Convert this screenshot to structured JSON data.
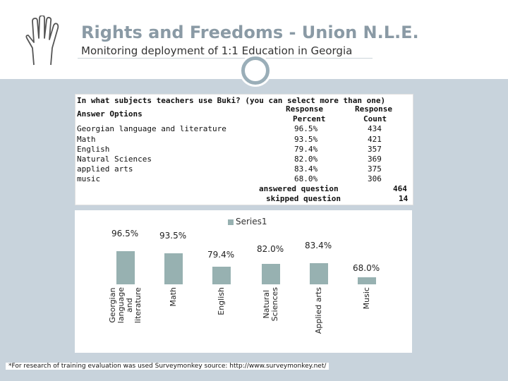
{
  "slide": {
    "title": "Rights and Freedoms - Union N.L.E.",
    "subtitle": "Monitoring deployment of 1:1 Education in Georgia",
    "logo_icon": "hand-icon",
    "accent_circle_icon": "circle-icon"
  },
  "survey_table": {
    "question": "In what subjects teachers use Buki? (you can select more than one)",
    "col_answer": "Answer Options",
    "col_percent_1": "Response",
    "col_percent_2": "Percent",
    "col_count_1": "Response",
    "col_count_2": "Count",
    "rows": [
      {
        "option": "Georgian language and literature",
        "percent": "96.5%",
        "count": "434"
      },
      {
        "option": "Math",
        "percent": "93.5%",
        "count": "421"
      },
      {
        "option": "English",
        "percent": "79.4%",
        "count": "357"
      },
      {
        "option": "Natural Sciences",
        "percent": "82.0%",
        "count": "369"
      },
      {
        "option": "applied arts",
        "percent": "83.4%",
        "count": "375"
      },
      {
        "option": "music",
        "percent": "68.0%",
        "count": "306"
      }
    ],
    "answered_label": "answered question",
    "answered_value": "464",
    "skipped_label": "skipped question",
    "skipped_value": "14"
  },
  "chart_data": {
    "type": "bar",
    "title": "",
    "legend": [
      "Series1"
    ],
    "legend_position": "top",
    "categories": [
      "Georgian\nlanguage\nand\nliterature",
      "Math",
      "English",
      "Natural\nSciences",
      "Applied arts",
      "Music"
    ],
    "series": [
      {
        "name": "Series1",
        "values": [
          96.5,
          93.5,
          79.4,
          82.0,
          83.4,
          68.0
        ]
      }
    ],
    "data_labels": [
      "96.5%",
      "93.5%",
      "79.4%",
      "82.0%",
      "83.4%",
      "68.0%"
    ],
    "ylim": [
      0,
      100
    ],
    "xlabel": "",
    "ylabel": "",
    "grid": false,
    "bar_color": "#97b1b1"
  },
  "footnote": "*For research of training evaluation was used Surveymonkey source: http://www.surveymonkey.net/"
}
